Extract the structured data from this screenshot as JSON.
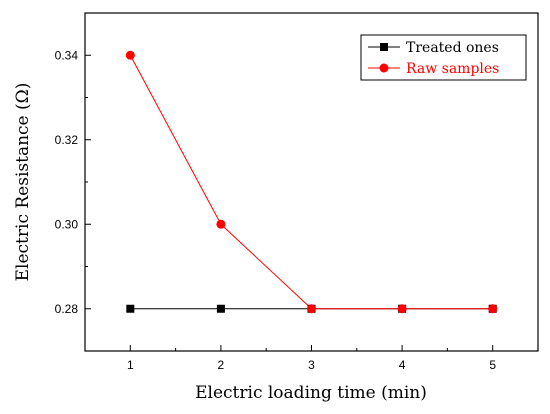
{
  "chart_data": {
    "type": "line",
    "xlabel": "Electric loading time (min)",
    "ylabel": "Electric Resistance (Ω)",
    "xlim": [
      0.5,
      5.5
    ],
    "ylim": [
      0.27,
      0.35
    ],
    "x_ticks": [
      1,
      2,
      3,
      4,
      5
    ],
    "y_ticks": [
      0.28,
      0.3,
      0.32,
      0.34
    ],
    "y_tick_labels": [
      "0.28",
      "0.30",
      "0.32",
      "0.34"
    ],
    "x": [
      1,
      2,
      3,
      4,
      5
    ],
    "grid": false,
    "legend_position": "top-right",
    "series": [
      {
        "name": "Treated ones",
        "values": [
          0.28,
          0.28,
          0.28,
          0.28,
          0.28
        ],
        "color": "#000000",
        "marker": "square"
      },
      {
        "name": "Raw samples",
        "values": [
          0.34,
          0.3,
          0.28,
          0.28,
          0.28
        ],
        "color": "#ff0000",
        "marker": "circle"
      }
    ]
  }
}
